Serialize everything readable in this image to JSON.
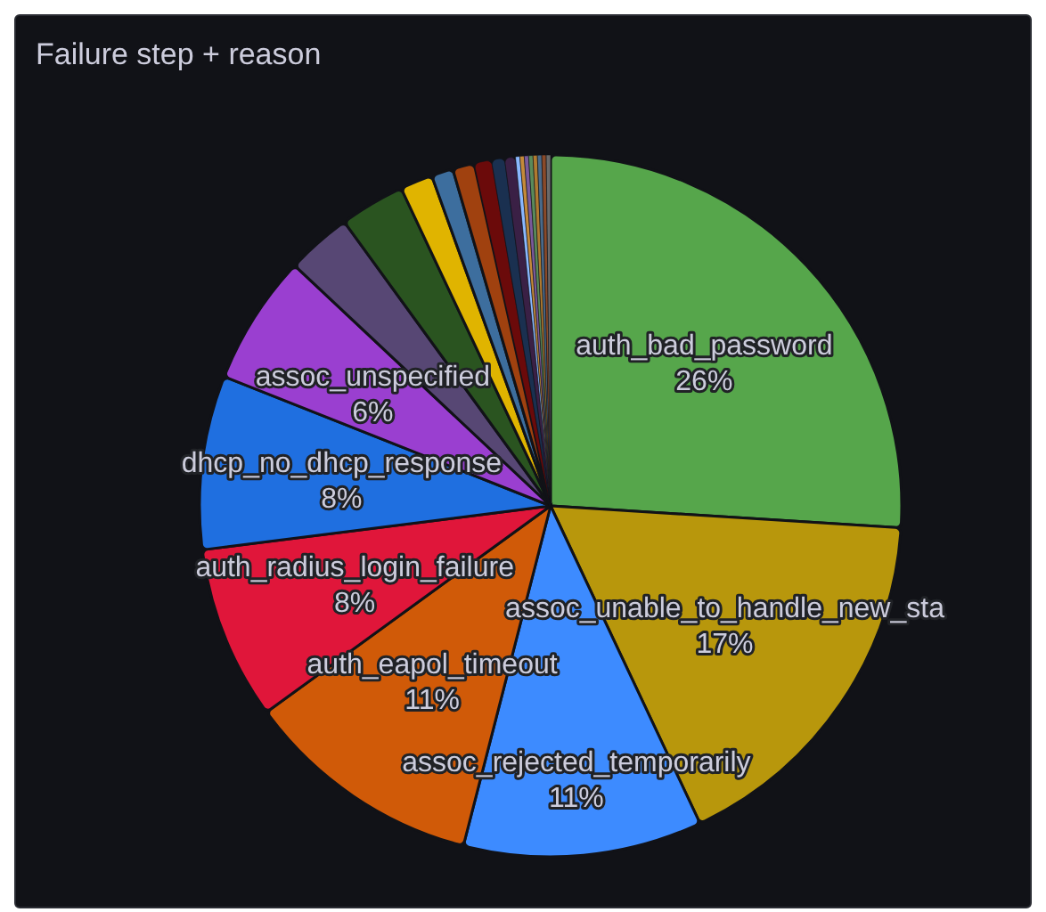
{
  "chart_data": {
    "type": "pie",
    "title": "Failure step + reason",
    "categories": [
      "auth_bad_password",
      "assoc_unable_to_handle_new_sta",
      "assoc_rejected_temporarily",
      "auth_eapol_timeout",
      "auth_radius_login_failure",
      "dhcp_no_dhcp_response",
      "assoc_unspecified",
      null,
      null,
      null,
      null,
      null,
      null,
      null,
      null,
      null,
      null,
      null,
      null,
      null,
      null,
      null,
      null
    ],
    "values": [
      26,
      17,
      11,
      11,
      8,
      8,
      6,
      3,
      3,
      1.5,
      1,
      1,
      0.8,
      0.6,
      0.5,
      0.2,
      0.2,
      0.2,
      0.2,
      0.2,
      0.2,
      0.2,
      0.2
    ],
    "colors": [
      "#56a64b",
      "#b8970c",
      "#3d8bff",
      "#d05a08",
      "#e0163a",
      "#1f6fe0",
      "#9a3fd0",
      "#574774",
      "#2a5420",
      "#e0b400",
      "#3d6e9e",
      "#a0410f",
      "#6b0a0a",
      "#1a3050",
      "#3a2045",
      "#8ab8ff",
      "#c48a3a",
      "#7a5a9a",
      "#5a8a5a",
      "#b07a30",
      "#4a6a8a",
      "#8a4a2a",
      "#6a6a6a"
    ],
    "value_labels": [
      "26%",
      "17%",
      "11%",
      "11%",
      "8%",
      "8%",
      "6%",
      null,
      null,
      null,
      null,
      null,
      null,
      null,
      null,
      null,
      null,
      null,
      null,
      null,
      null,
      null,
      null
    ]
  }
}
